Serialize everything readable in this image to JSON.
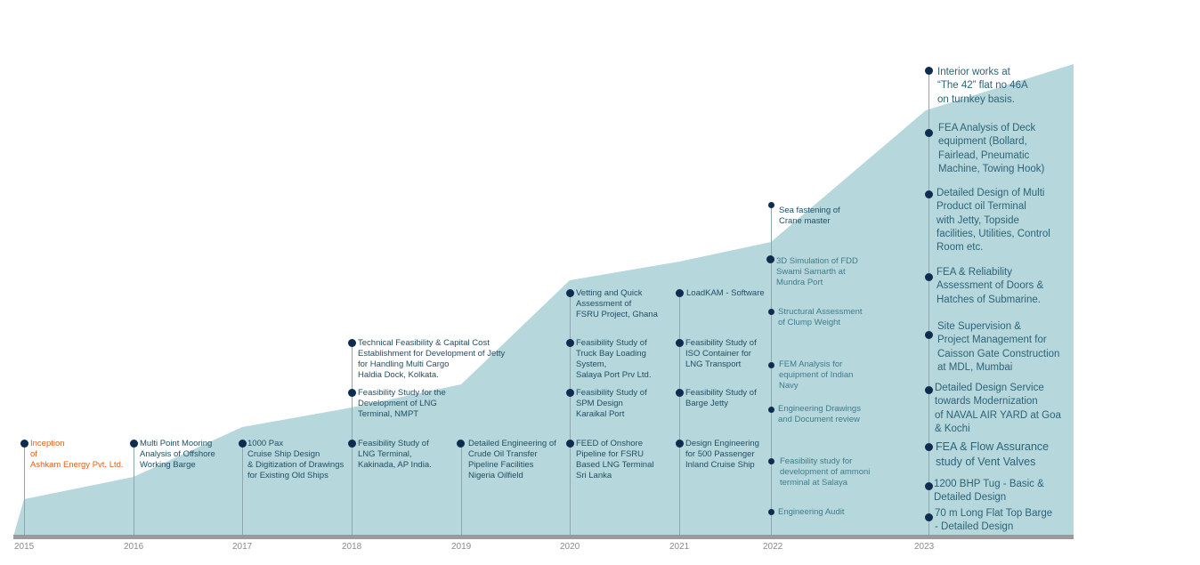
{
  "colors": {
    "area": "#b6d7dc",
    "dot": "#0d2c4f",
    "text": "#1f4f63",
    "inception": "#e0611c",
    "axis": "#9a9a9a"
  },
  "years": [
    "2015",
    "2016",
    "2017",
    "2018",
    "2019",
    "2020",
    "2021",
    "2022",
    "2023"
  ],
  "y2015": {
    "items": [
      {
        "text": "Inception\nof\nAshkam Energy Pvt. Ltd."
      }
    ]
  },
  "y2016": {
    "items": [
      {
        "text": "Multi Point Mooring\nAnalysis of Offshore\nWorking Barge"
      }
    ]
  },
  "y2017": {
    "items": [
      {
        "text": "1000 Pax\n Cruise Ship Design\n & Digitization of Drawings\n for Existing Old Ships"
      }
    ]
  },
  "y2018": {
    "items": [
      {
        "text": "Feasibility Study of\nLNG Terminal,\nKakinada, AP India."
      },
      {
        "text": "Feasibility Study for the\nDevelopment of LNG\nTerminal, NMPT"
      },
      {
        "text": "Technical Feasibility & Capital Cost\nEstablishment for Development of Jetty\nfor Handling Multi Cargo\nHaldia Dock, Kolkata."
      }
    ]
  },
  "y2019": {
    "items": [
      {
        "text": "Detailed Engineering of\nCrude Oil Transfer\nPipeline Facilities\nNigeria Oilfield"
      }
    ]
  },
  "y2020": {
    "items": [
      {
        "text": "FEED of Onshore\nPipeline for FSRU\nBased LNG Terminal\nSri Lanka"
      },
      {
        "text": "Feasibility Study of\nSPM Design\nKaraikal Port"
      },
      {
        "text": "Feasibility Study of\nTruck Bay Loading\nSystem,\nSalaya Port Prv Ltd."
      },
      {
        "text": "Vetting  and Quick\nAssessment of\nFSRU Project, Ghana"
      }
    ]
  },
  "y2021": {
    "items": [
      {
        "text": "Design Engineering\nfor 500 Passenger\nInland Cruise Ship"
      },
      {
        "text": "Feasibility Study of\nBarge Jetty"
      },
      {
        "text": "Feasibility Study of\nISO Container for\nLNG Transport"
      },
      {
        "text": "LoadKAM - Software"
      }
    ]
  },
  "y2022": {
    "items": [
      {
        "text": "Engineering Audit"
      },
      {
        "text": "Feasibility study for\ndevelopment of ammoni\nterminal at Salaya"
      },
      {
        "text": "Engineering Drawings\nand Document review"
      },
      {
        "text": "FEM Analysis for\nequipment of Indian\nNavy"
      },
      {
        "text": "Structural Assessment\nof Clump Weight"
      },
      {
        "text": "3D Simulation of FDD\nSwami Samarth at\nMundra Port"
      },
      {
        "text": " Sea fastening of\nCrane master"
      }
    ]
  },
  "y2023": {
    "items": [
      {
        "text": "70 m Long Flat Top Barge\n- Detailed Design"
      },
      {
        "text": "1200 BHP Tug - Basic &\nDetailed Design"
      },
      {
        "text": "FEA & Flow Assurance\nstudy of Vent Valves"
      },
      {
        "text": "Detailed Design Service\ntowards Modernization\nof NAVAL AIR YARD at Goa\n& Kochi"
      },
      {
        "text": "Site Supervision &\nProject Management for\nCaisson Gate Construction\n at MDL, Mumbai"
      },
      {
        "text": "FEA & Reliability\nAssessment of Doors &\nHatches of Submarine."
      },
      {
        "text": "Detailed Design of Multi\nProduct oil Terminal\nwith Jetty, Topside\nfacilities, Utilities, Control\nRoom etc."
      },
      {
        "text": "FEA Analysis of Deck\nequipment (Bollard,\nFairlead, Pneumatic\nMachine, Towing Hook)"
      },
      {
        "text": "Interior works at\n“The 42” flat no 46A\non turnkey basis."
      }
    ]
  }
}
